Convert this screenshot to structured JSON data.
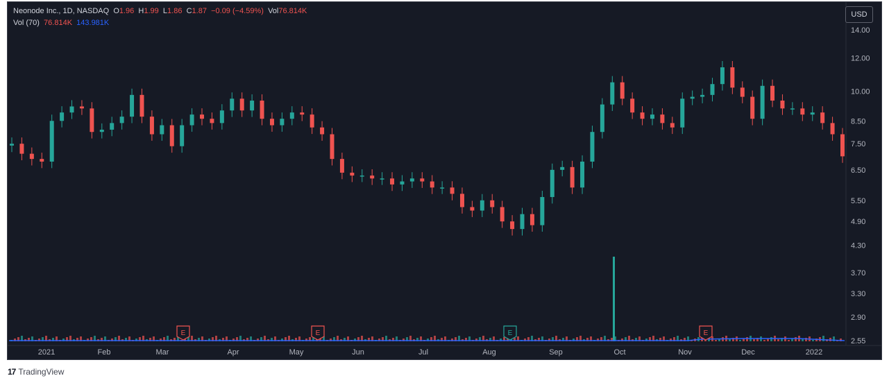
{
  "header": {
    "title": "Neonode Inc., 1D, NASDAQ",
    "o_label": "O",
    "o_val": "1.96",
    "h_label": "H",
    "h_val": "1.99",
    "l_label": "L",
    "l_val": "1.86",
    "c_label": "C",
    "c_val": "1.87",
    "change": "−0.09 (−4.59%)",
    "vol_label": "Vol",
    "vol_val": "76.814K"
  },
  "vol_indicator": {
    "label": "Vol (70)",
    "val1": "76.814K",
    "val2": "143.981K"
  },
  "currency": "USD",
  "brand": {
    "logo": "17",
    "name": "TradingView"
  },
  "colors": {
    "up": "#26a69a",
    "down": "#ef5350",
    "bg": "#161a25",
    "ma": "#2962ff"
  },
  "chart_data": {
    "type": "candlestick",
    "y_scale": "log",
    "price_axis_ticks": [
      "14.00",
      "12.00",
      "10.00",
      "8.50",
      "7.50",
      "6.50",
      "5.50",
      "4.90",
      "4.30",
      "3.70",
      "3.30",
      "2.90",
      "2.55"
    ],
    "x_ticks": [
      "2021",
      "Feb",
      "Mar",
      "Apr",
      "May",
      "Jun",
      "Jul",
      "Aug",
      "Sep",
      "Oct",
      "Nov",
      "Dec",
      "2022"
    ],
    "earnings_markers": [
      {
        "month": "Mar",
        "label": "E",
        "status": "past"
      },
      {
        "month": "May",
        "label": "E",
        "status": "past"
      },
      {
        "month": "Aug",
        "label": "E",
        "status": "positive"
      },
      {
        "month": "Nov",
        "label": "E",
        "status": "past"
      }
    ],
    "close_series": [
      {
        "m": "2021",
        "c": 7.5
      },
      {
        "m": "2021",
        "c": 7.1
      },
      {
        "m": "2021",
        "c": 6.9
      },
      {
        "m": "2021",
        "c": 6.8
      },
      {
        "m": "2021",
        "c": 8.5
      },
      {
        "m": "2021",
        "c": 8.9
      },
      {
        "m": "2021",
        "c": 9.2
      },
      {
        "m": "Feb",
        "c": 9.1
      },
      {
        "m": "Feb",
        "c": 8.0
      },
      {
        "m": "Feb",
        "c": 8.1
      },
      {
        "m": "Feb",
        "c": 8.4
      },
      {
        "m": "Feb",
        "c": 8.7
      },
      {
        "m": "Feb",
        "c": 9.8
      },
      {
        "m": "Mar",
        "c": 8.7
      },
      {
        "m": "Mar",
        "c": 7.9
      },
      {
        "m": "Mar",
        "c": 8.3
      },
      {
        "m": "Mar",
        "c": 7.4
      },
      {
        "m": "Mar",
        "c": 8.3
      },
      {
        "m": "Mar",
        "c": 8.8
      },
      {
        "m": "Mar",
        "c": 8.6
      },
      {
        "m": "Mar",
        "c": 8.4
      },
      {
        "m": "Mar",
        "c": 9.0
      },
      {
        "m": "Apr",
        "c": 9.6
      },
      {
        "m": "Apr",
        "c": 9.0
      },
      {
        "m": "Apr",
        "c": 9.5
      },
      {
        "m": "Apr",
        "c": 8.6
      },
      {
        "m": "Apr",
        "c": 8.3
      },
      {
        "m": "Apr",
        "c": 8.6
      },
      {
        "m": "Apr",
        "c": 8.9
      },
      {
        "m": "Apr",
        "c": 8.8
      },
      {
        "m": "May",
        "c": 8.2
      },
      {
        "m": "May",
        "c": 7.9
      },
      {
        "m": "May",
        "c": 6.9
      },
      {
        "m": "May",
        "c": 6.4
      },
      {
        "m": "May",
        "c": 6.3
      },
      {
        "m": "Jun",
        "c": 6.3
      },
      {
        "m": "Jun",
        "c": 6.2
      },
      {
        "m": "Jun",
        "c": 6.2
      },
      {
        "m": "Jun",
        "c": 6.0
      },
      {
        "m": "Jun",
        "c": 6.1
      },
      {
        "m": "Jun",
        "c": 6.2
      },
      {
        "m": "Jul",
        "c": 6.1
      },
      {
        "m": "Jul",
        "c": 5.9
      },
      {
        "m": "Jul",
        "c": 5.9
      },
      {
        "m": "Jul",
        "c": 5.7
      },
      {
        "m": "Jul",
        "c": 5.3
      },
      {
        "m": "Aug",
        "c": 5.2
      },
      {
        "m": "Aug",
        "c": 5.5
      },
      {
        "m": "Aug",
        "c": 5.3
      },
      {
        "m": "Aug",
        "c": 4.9
      },
      {
        "m": "Aug",
        "c": 4.7
      },
      {
        "m": "Aug",
        "c": 5.1
      },
      {
        "m": "Sep",
        "c": 4.8
      },
      {
        "m": "Sep",
        "c": 5.6
      },
      {
        "m": "Sep",
        "c": 6.5
      },
      {
        "m": "Sep",
        "c": 6.6
      },
      {
        "m": "Sep",
        "c": 5.9
      },
      {
        "m": "Sep",
        "c": 6.8
      },
      {
        "m": "Sep",
        "c": 8.0
      },
      {
        "m": "Sep",
        "c": 9.3
      },
      {
        "m": "Oct",
        "c": 10.5
      },
      {
        "m": "Oct",
        "c": 9.6
      },
      {
        "m": "Oct",
        "c": 8.9
      },
      {
        "m": "Oct",
        "c": 8.6
      },
      {
        "m": "Oct",
        "c": 8.8
      },
      {
        "m": "Oct",
        "c": 8.4
      },
      {
        "m": "Oct",
        "c": 8.2
      },
      {
        "m": "Nov",
        "c": 9.6
      },
      {
        "m": "Nov",
        "c": 9.7
      },
      {
        "m": "Nov",
        "c": 9.8
      },
      {
        "m": "Nov",
        "c": 10.4
      },
      {
        "m": "Nov",
        "c": 11.4
      },
      {
        "m": "Nov",
        "c": 10.2
      },
      {
        "m": "Nov",
        "c": 9.7
      },
      {
        "m": "Nov",
        "c": 8.6
      },
      {
        "m": "Dec",
        "c": 10.3
      },
      {
        "m": "Dec",
        "c": 9.5
      },
      {
        "m": "Dec",
        "c": 9.1
      },
      {
        "m": "Dec",
        "c": 9.1
      },
      {
        "m": "Dec",
        "c": 8.8
      },
      {
        "m": "Dec",
        "c": 8.9
      },
      {
        "m": "2022",
        "c": 8.4
      },
      {
        "m": "2022",
        "c": 7.9
      },
      {
        "m": "2022",
        "c": 7.0
      }
    ],
    "volume_spike": {
      "month": "Oct",
      "relative": "largest"
    }
  }
}
